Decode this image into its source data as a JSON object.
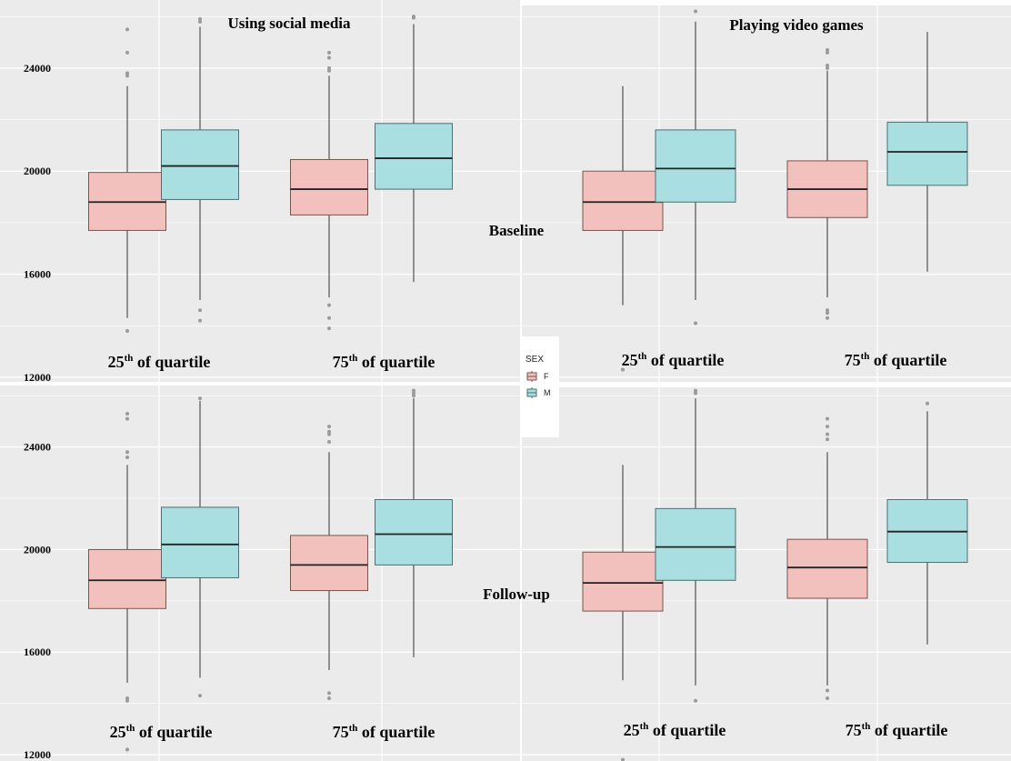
{
  "chart_data": {
    "type": "box",
    "layout": "2x2 facets",
    "column_titles": [
      "Using social media",
      "Playing video games"
    ],
    "row_labels": [
      "Baseline",
      "Follow-up"
    ],
    "categories": [
      {
        "base": "25",
        "sup": "th",
        "rest": " of quartile"
      },
      {
        "base": "75",
        "sup": "th",
        "rest": " of quartile"
      }
    ],
    "legend": {
      "title": "SEX",
      "entries": [
        "F",
        "M"
      ],
      "placement": "center"
    },
    "colors": {
      "F": "#f3c1bd",
      "M": "#a9dfe0",
      "F_line": "#7a5550",
      "M_line": "#4d6f70",
      "panel_bg": "#ebebeb",
      "grid": "#ffffff"
    },
    "y_ticks": [
      {
        "value": 12000,
        "label": "12000"
      },
      {
        "value": 16000,
        "label": "16000"
      },
      {
        "value": 20000,
        "label": "20000"
      },
      {
        "value": 24000,
        "label": "24000"
      }
    ],
    "panels": [
      {
        "row": 0,
        "col": 0,
        "ylim": [
          12000,
          26500
        ],
        "boxes": [
          {
            "category": 0,
            "sex": "F",
            "q1": 17700,
            "median": 18800,
            "q3": 19950,
            "whisker_low": 14300,
            "whisker_high": 23300,
            "outliers": [
              13800,
              23700,
              23800,
              24600,
              25500
            ]
          },
          {
            "category": 0,
            "sex": "M",
            "q1": 18900,
            "median": 20200,
            "q3": 21600,
            "whisker_low": 15000,
            "whisker_high": 25600,
            "outliers": [
              14200,
              14600,
              25800,
              25900
            ]
          },
          {
            "category": 1,
            "sex": "F",
            "q1": 18300,
            "median": 19300,
            "q3": 20450,
            "whisker_low": 15100,
            "whisker_high": 23700,
            "outliers": [
              13900,
              14300,
              14800,
              23900,
              24000,
              24400,
              24600
            ]
          },
          {
            "category": 1,
            "sex": "M",
            "q1": 19300,
            "median": 20500,
            "q3": 21850,
            "whisker_low": 15700,
            "whisker_high": 25700,
            "outliers": [
              25950,
              26000
            ]
          }
        ]
      },
      {
        "row": 0,
        "col": 1,
        "ylim": [
          12000,
          26500
        ],
        "boxes": [
          {
            "category": 0,
            "sex": "F",
            "q1": 17700,
            "median": 18800,
            "q3": 20000,
            "whisker_low": 14800,
            "whisker_high": 23300,
            "outliers": [
              12300
            ]
          },
          {
            "category": 0,
            "sex": "M",
            "q1": 18800,
            "median": 20100,
            "q3": 21600,
            "whisker_low": 15000,
            "whisker_high": 25800,
            "outliers": [
              14100,
              26200
            ]
          },
          {
            "category": 1,
            "sex": "F",
            "q1": 18200,
            "median": 19300,
            "q3": 20400,
            "whisker_low": 15100,
            "whisker_high": 23900,
            "outliers": [
              14300,
              14500,
              14600,
              24000,
              24100,
              24600,
              24700
            ]
          },
          {
            "category": 1,
            "sex": "M",
            "q1": 19450,
            "median": 20750,
            "q3": 21900,
            "whisker_low": 16100,
            "whisker_high": 25400,
            "outliers": []
          }
        ]
      },
      {
        "row": 1,
        "col": 0,
        "ylim": [
          12000,
          26400
        ],
        "boxes": [
          {
            "category": 0,
            "sex": "F",
            "q1": 17700,
            "median": 18800,
            "q3": 20000,
            "whisker_low": 14800,
            "whisker_high": 23300,
            "outliers": [
              12200,
              14100,
              14200,
              23600,
              23800,
              25100,
              25300
            ]
          },
          {
            "category": 0,
            "sex": "M",
            "q1": 18900,
            "median": 20200,
            "q3": 21650,
            "whisker_low": 15000,
            "whisker_high": 25800,
            "outliers": [
              14300,
              25900
            ]
          },
          {
            "category": 1,
            "sex": "F",
            "q1": 18400,
            "median": 19400,
            "q3": 20550,
            "whisker_low": 15300,
            "whisker_high": 23800,
            "outliers": [
              14200,
              14400,
              24200,
              24500,
              24600,
              24800
            ]
          },
          {
            "category": 1,
            "sex": "M",
            "q1": 19400,
            "median": 20600,
            "q3": 21950,
            "whisker_low": 15800,
            "whisker_high": 25900,
            "outliers": [
              26000,
              26100,
              26200
            ]
          }
        ]
      },
      {
        "row": 1,
        "col": 1,
        "ylim": [
          12000,
          26400
        ],
        "boxes": [
          {
            "category": 0,
            "sex": "F",
            "q1": 17600,
            "median": 18700,
            "q3": 19900,
            "whisker_low": 14900,
            "whisker_high": 23300,
            "outliers": [
              11800
            ]
          },
          {
            "category": 0,
            "sex": "M",
            "q1": 18800,
            "median": 20100,
            "q3": 21600,
            "whisker_low": 14700,
            "whisker_high": 25900,
            "outliers": [
              14100,
              26100,
              26200
            ]
          },
          {
            "category": 1,
            "sex": "F",
            "q1": 18100,
            "median": 19300,
            "q3": 20400,
            "whisker_low": 14700,
            "whisker_high": 23800,
            "outliers": [
              14200,
              14500,
              24300,
              24500,
              24800,
              25100
            ]
          },
          {
            "category": 1,
            "sex": "M",
            "q1": 19500,
            "median": 20700,
            "q3": 21950,
            "whisker_low": 16300,
            "whisker_high": 25400,
            "outliers": [
              25700
            ]
          }
        ]
      }
    ]
  }
}
